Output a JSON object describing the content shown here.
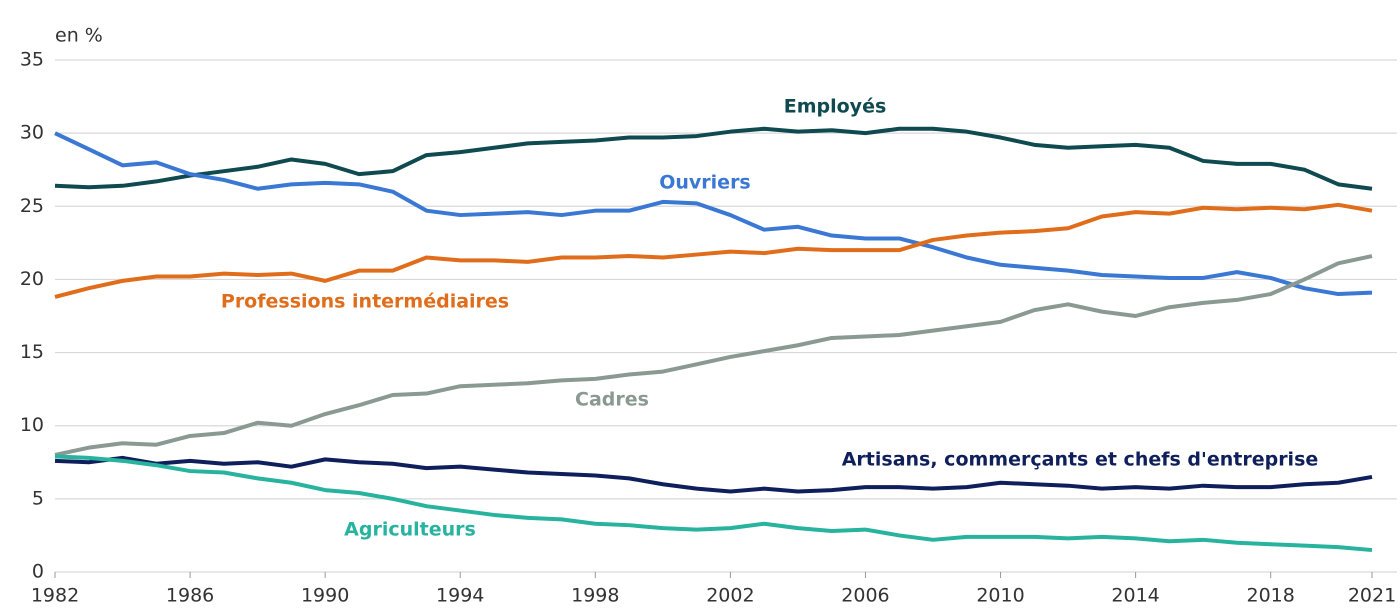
{
  "chart_data": {
    "type": "line",
    "y_label": "en %",
    "x": [
      1982,
      1983,
      1984,
      1985,
      1986,
      1987,
      1988,
      1989,
      1990,
      1991,
      1992,
      1993,
      1994,
      1995,
      1996,
      1997,
      1998,
      1999,
      2000,
      2001,
      2002,
      2003,
      2004,
      2005,
      2006,
      2007,
      2008,
      2009,
      2010,
      2011,
      2012,
      2013,
      2014,
      2015,
      2016,
      2017,
      2018,
      2019,
      2020,
      2021
    ],
    "xlim": [
      1982,
      2021
    ],
    "xticks": [
      1982,
      1986,
      1990,
      1994,
      1998,
      2002,
      2006,
      2010,
      2014,
      2018,
      2021
    ],
    "ylim": [
      0,
      35
    ],
    "yticks": [
      0,
      5,
      10,
      15,
      20,
      25,
      30,
      35
    ],
    "grid": true,
    "series": [
      {
        "name": "Employés",
        "color": "#0e4a50",
        "values": [
          26.4,
          26.3,
          26.4,
          26.7,
          27.1,
          27.4,
          27.7,
          28.2,
          27.9,
          27.2,
          27.4,
          28.5,
          28.7,
          29.0,
          29.3,
          29.4,
          29.5,
          29.7,
          29.7,
          29.8,
          30.1,
          30.3,
          30.1,
          30.2,
          30.0,
          30.3,
          30.3,
          30.1,
          29.7,
          29.2,
          29.0,
          29.1,
          29.2,
          29.0,
          28.1,
          27.9,
          27.9,
          27.5,
          26.5,
          26.2
        ]
      },
      {
        "name": "Ouvriers",
        "color": "#3a78d4",
        "values": [
          30.0,
          28.9,
          27.8,
          28.0,
          27.2,
          26.8,
          26.2,
          26.5,
          26.6,
          26.5,
          26.0,
          24.7,
          24.4,
          24.5,
          24.6,
          24.4,
          24.7,
          24.7,
          25.3,
          25.2,
          24.4,
          23.4,
          23.6,
          23.0,
          22.8,
          22.8,
          22.2,
          21.5,
          21.0,
          20.8,
          20.6,
          20.3,
          20.2,
          20.1,
          20.1,
          20.5,
          20.1,
          19.4,
          19.0,
          19.1
        ]
      },
      {
        "name": "Professions intermédiaires",
        "color": "#e06d1b",
        "values": [
          18.8,
          19.4,
          19.9,
          20.2,
          20.2,
          20.4,
          20.3,
          20.4,
          19.9,
          20.6,
          20.6,
          21.5,
          21.3,
          21.3,
          21.2,
          21.5,
          21.5,
          21.6,
          21.5,
          21.7,
          21.9,
          21.8,
          22.1,
          22.0,
          22.0,
          22.0,
          22.7,
          23.0,
          23.2,
          23.3,
          23.5,
          24.3,
          24.6,
          24.5,
          24.9,
          24.8,
          24.9,
          24.8,
          25.1,
          24.7
        ]
      },
      {
        "name": "Cadres",
        "color": "#8a9a92",
        "values": [
          8.0,
          8.5,
          8.8,
          8.7,
          9.3,
          9.5,
          10.2,
          10.0,
          10.8,
          11.4,
          12.1,
          12.2,
          12.7,
          12.8,
          12.9,
          13.1,
          13.2,
          13.5,
          13.7,
          14.2,
          14.7,
          15.1,
          15.5,
          16.0,
          16.1,
          16.2,
          16.5,
          16.8,
          17.1,
          17.9,
          18.3,
          17.8,
          17.5,
          18.1,
          18.4,
          18.6,
          19.0,
          20.0,
          21.1,
          21.6
        ]
      },
      {
        "name": "Artisans, commerçants et chefs d'entreprise",
        "color": "#0f1f5c",
        "values": [
          7.6,
          7.5,
          7.8,
          7.4,
          7.6,
          7.4,
          7.5,
          7.2,
          7.7,
          7.5,
          7.4,
          7.1,
          7.2,
          7.0,
          6.8,
          6.7,
          6.6,
          6.4,
          6.0,
          5.7,
          5.5,
          5.7,
          5.5,
          5.6,
          5.8,
          5.8,
          5.7,
          5.8,
          6.1,
          6.0,
          5.9,
          5.7,
          5.8,
          5.7,
          5.9,
          5.8,
          5.8,
          6.0,
          6.1,
          6.5
        ]
      },
      {
        "name": "Agriculteurs",
        "color": "#27b39e",
        "values": [
          7.9,
          7.8,
          7.6,
          7.3,
          6.9,
          6.8,
          6.4,
          6.1,
          5.6,
          5.4,
          5.0,
          4.5,
          4.2,
          3.9,
          3.7,
          3.6,
          3.3,
          3.2,
          3.0,
          2.9,
          3.0,
          3.3,
          3.0,
          2.8,
          2.9,
          2.5,
          2.2,
          2.4,
          2.4,
          2.4,
          2.3,
          2.4,
          2.3,
          2.1,
          2.2,
          2.0,
          1.9,
          1.8,
          1.7,
          1.5
        ]
      }
    ]
  }
}
